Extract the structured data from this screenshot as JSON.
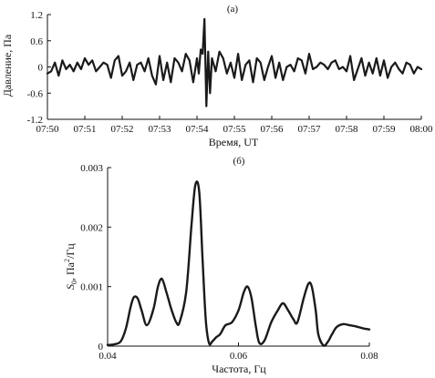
{
  "chart_data": [
    {
      "type": "line",
      "panel_label": "(а)",
      "xlabel": "Время, UT",
      "ylabel": "Давление, Па",
      "x_ticks": [
        "07:50",
        "07:51",
        "07:52",
        "07:53",
        "07:54",
        "07:55",
        "07:56",
        "07:57",
        "07:58",
        "07:59",
        "08:00"
      ],
      "y_ticks": [
        "1.2",
        "0.6",
        "0",
        "-0.6",
        "-1.2"
      ],
      "y_tick_values": [
        1.2,
        0.6,
        0,
        -0.6,
        -1.2
      ],
      "xlim": [
        0,
        10
      ],
      "ylim": [
        -1.2,
        1.2
      ],
      "x_units": "minutes after 07:50 UT",
      "series": [
        {
          "x": [
            0,
            0.1,
            0.2,
            0.3,
            0.4,
            0.5,
            0.6,
            0.7,
            0.8,
            0.9,
            1.0,
            1.1,
            1.2,
            1.3,
            1.4,
            1.5,
            1.6,
            1.7,
            1.8,
            1.9,
            2.0,
            2.1,
            2.2,
            2.3,
            2.4,
            2.5,
            2.6,
            2.7,
            2.8,
            2.9,
            3.0,
            3.1,
            3.2,
            3.3,
            3.4,
            3.5,
            3.6,
            3.7,
            3.8,
            3.9,
            4.0,
            4.05,
            4.1,
            4.15,
            4.2,
            4.25,
            4.3,
            4.35,
            4.4,
            4.5,
            4.6,
            4.7,
            4.8,
            4.9,
            5.0,
            5.1,
            5.2,
            5.3,
            5.4,
            5.5,
            5.6,
            5.7,
            5.8,
            5.9,
            6.0,
            6.1,
            6.2,
            6.3,
            6.4,
            6.5,
            6.6,
            6.7,
            6.8,
            6.9,
            7.0,
            7.1,
            7.2,
            7.3,
            7.4,
            7.5,
            7.6,
            7.7,
            7.8,
            7.9,
            8.0,
            8.1,
            8.2,
            8.3,
            8.4,
            8.5,
            8.6,
            8.7,
            8.8,
            8.9,
            9.0,
            9.1,
            9.2,
            9.3,
            9.4,
            9.5,
            9.6,
            9.7,
            9.8,
            9.9,
            10.0
          ],
          "values": [
            -0.15,
            -0.1,
            0.1,
            -0.2,
            0.15,
            -0.05,
            0.05,
            -0.1,
            0.1,
            -0.05,
            0.2,
            0.05,
            0.15,
            -0.1,
            0.0,
            0.1,
            0.05,
            -0.25,
            0.15,
            0.25,
            -0.2,
            -0.1,
            0.1,
            -0.3,
            0.05,
            0.1,
            -0.1,
            0.2,
            -0.2,
            -0.4,
            0.25,
            -0.3,
            0.1,
            -0.35,
            0.2,
            0.1,
            -0.1,
            0.3,
            0.15,
            -0.35,
            0.2,
            -0.15,
            0.4,
            0.3,
            1.1,
            -0.9,
            0.35,
            -0.6,
            0.2,
            -0.1,
            0.35,
            0.2,
            -0.15,
            0.1,
            -0.25,
            0.3,
            -0.3,
            0.05,
            0.15,
            -0.35,
            0.2,
            0.1,
            -0.3,
            0.0,
            0.25,
            -0.25,
            0.1,
            -0.3,
            0.0,
            0.05,
            -0.1,
            0.2,
            0.15,
            -0.15,
            0.3,
            -0.05,
            0.0,
            0.1,
            0.05,
            -0.05,
            0.1,
            0.15,
            -0.05,
            0.0,
            -0.1,
            0.25,
            -0.3,
            -0.05,
            0.2,
            -0.2,
            0.1,
            -0.15,
            0.2,
            -0.2,
            0.15,
            -0.25,
            0.0,
            0.1,
            -0.05,
            -0.15,
            0.1,
            0.05,
            -0.15,
            0.0,
            -0.05
          ]
        }
      ]
    },
    {
      "type": "line",
      "panel_label": "(б)",
      "xlabel": "Частота, Гц",
      "ylabel": "S_0, Па²/Гц",
      "ylabel_main": "S",
      "ylabel_sub": "0",
      "ylabel_rest": ", Па",
      "ylabel_sup": "2",
      "ylabel_tail": "/Гц",
      "x_ticks": [
        "0.04",
        "0.06",
        "0.08"
      ],
      "x_tick_values": [
        0.04,
        0.06,
        0.08
      ],
      "y_ticks": [
        "0.003",
        "0.002",
        "0.001",
        "0"
      ],
      "y_tick_values": [
        0.003,
        0.002,
        0.001,
        0
      ],
      "xlim": [
        0.04,
        0.08
      ],
      "ylim": [
        0,
        0.003
      ],
      "series": [
        {
          "x": [
            0.04,
            0.041,
            0.042,
            0.0428,
            0.0435,
            0.044,
            0.0446,
            0.0452,
            0.046,
            0.047,
            0.0477,
            0.0483,
            0.049,
            0.0498,
            0.0505,
            0.051,
            0.052,
            0.0528,
            0.0534,
            0.054,
            0.0545,
            0.055,
            0.0555,
            0.056,
            0.0566,
            0.0572,
            0.058,
            0.059,
            0.06,
            0.0608,
            0.0614,
            0.062,
            0.0627,
            0.0632,
            0.064,
            0.065,
            0.066,
            0.0668,
            0.0676,
            0.0684,
            0.069,
            0.07,
            0.0707,
            0.0712,
            0.0718,
            0.0722,
            0.073,
            0.0737,
            0.0743,
            0.075,
            0.076,
            0.077,
            0.078,
            0.079,
            0.08
          ],
          "values": [
            2e-05,
            3e-05,
            8e-05,
            0.0003,
            0.00065,
            0.00082,
            0.0008,
            0.0006,
            0.00035,
            0.00062,
            0.001,
            0.00113,
            0.0009,
            0.0006,
            0.0004,
            0.0004,
            0.0009,
            0.002,
            0.0027,
            0.0026,
            0.0015,
            0.00045,
            5e-05,
            8e-05,
            0.00015,
            0.0002,
            0.00035,
            0.0004,
            0.0006,
            0.0009,
            0.001,
            0.0008,
            0.0003,
            5e-05,
            0.0001,
            0.0004,
            0.0006,
            0.00072,
            0.0006,
            0.00045,
            0.0004,
            0.00082,
            0.00105,
            0.001,
            0.0006,
            0.0002,
            1e-05,
            8e-05,
            0.0002,
            0.00032,
            0.00037,
            0.00035,
            0.00033,
            0.0003,
            0.00028
          ]
        }
      ]
    }
  ]
}
